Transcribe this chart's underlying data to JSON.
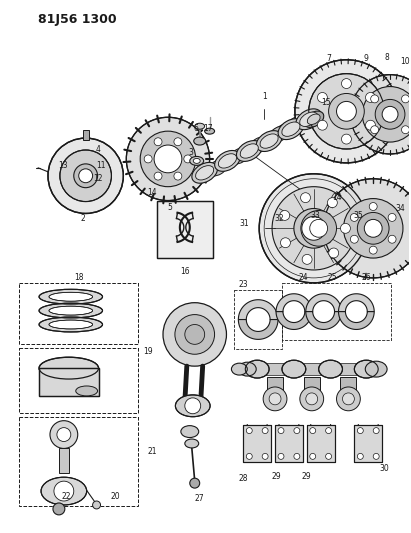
{
  "title_code": "81J56 1300",
  "bg_color": "#ffffff",
  "line_color": "#1a1a1a",
  "fig_width": 4.11,
  "fig_height": 5.33,
  "dpi": 100
}
